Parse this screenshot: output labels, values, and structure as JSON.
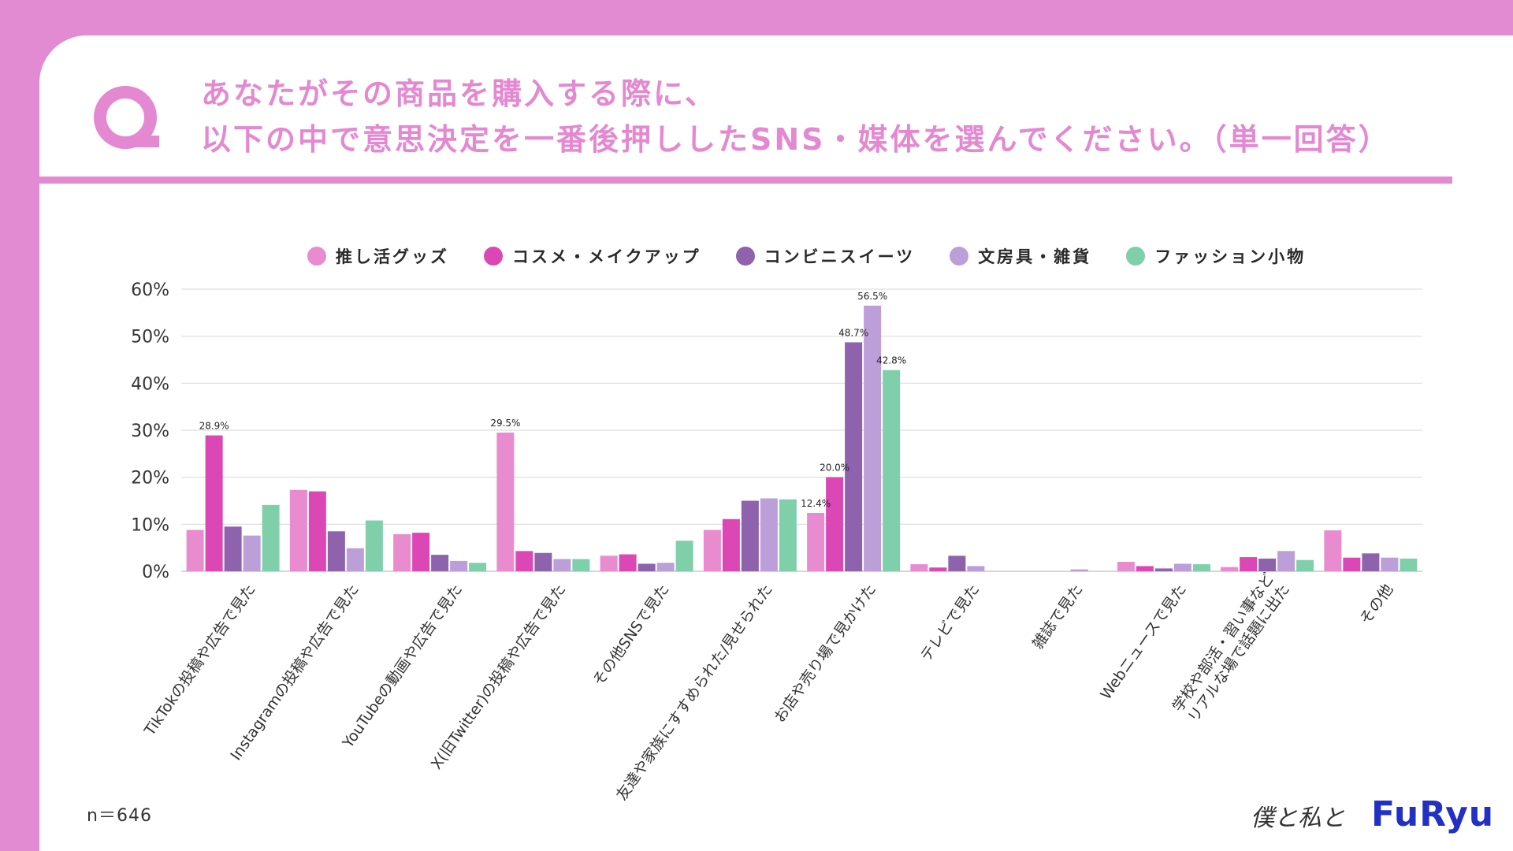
{
  "question": {
    "line1": "あなたがその商品を購入する際に、",
    "line2": "以下の中で意思決定を一番後押ししたSNS・媒体を選んでください。（単一回答）"
  },
  "legend": [
    {
      "label": "推し活グッズ",
      "color": "#e88ccf"
    },
    {
      "label": "コスメ・メイクアップ",
      "color": "#db47b5"
    },
    {
      "label": "コンビニスイーツ",
      "color": "#8e62ad"
    },
    {
      "label": "文房具・雑貨",
      "color": "#bc9ed8"
    },
    {
      "label": "ファッション小物",
      "color": "#7fd0aa"
    }
  ],
  "sample_size": "n＝646",
  "brand": {
    "signature": "僕と私と",
    "logo": "FuRyu"
  },
  "chart_data": {
    "type": "bar",
    "title": "あなたがその商品を購入する際に、以下の中で意思決定を一番後押ししたSNS・媒体を選んでください。（単一回答）",
    "xlabel": "",
    "ylabel": "",
    "ylim": [
      0,
      60
    ],
    "yticks": [
      "0%",
      "10%",
      "20%",
      "30%",
      "40%",
      "50%",
      "60%"
    ],
    "categories": [
      "TikTokの投稿や広告で見た",
      "Instagramの投稿や広告で見た",
      "YouTubeの動画や広告で見た",
      "X(旧Twitter)の投稿や広告で見た",
      "その他SNSで見た",
      "友達や家族にすすめられた/見せられた",
      "お店や売り場で見かけた",
      "テレビで見た",
      "雑誌で見た",
      "Webニュースで見た",
      "学校や部活・習い事など\nリアルな場で話題に出た",
      "その他"
    ],
    "series": [
      {
        "name": "推し活グッズ",
        "color": "#e88ccf",
        "values": [
          8.8,
          17.3,
          7.9,
          29.5,
          3.3,
          8.8,
          12.4,
          1.5,
          0,
          2.0,
          0.9,
          8.7
        ]
      },
      {
        "name": "コスメ・メイクアップ",
        "color": "#db47b5",
        "values": [
          28.9,
          17.0,
          8.2,
          4.3,
          3.6,
          11.1,
          20.0,
          0.8,
          0,
          1.1,
          3.0,
          2.9
        ]
      },
      {
        "name": "コンビニスイーツ",
        "color": "#8e62ad",
        "values": [
          9.5,
          8.5,
          3.5,
          3.9,
          1.6,
          15.0,
          48.7,
          3.3,
          0,
          0.6,
          2.7,
          3.8
        ]
      },
      {
        "name": "文房具・雑貨",
        "color": "#bc9ed8",
        "values": [
          7.6,
          4.9,
          2.2,
          2.6,
          1.8,
          15.5,
          56.5,
          1.1,
          0.4,
          1.6,
          4.3,
          2.9
        ]
      },
      {
        "name": "ファッション小物",
        "color": "#7fd0aa",
        "values": [
          14.1,
          10.8,
          1.8,
          2.6,
          6.5,
          15.3,
          42.8,
          0,
          0,
          1.5,
          2.4,
          2.7
        ]
      }
    ],
    "data_labels": [
      {
        "category": 0,
        "series": 1,
        "text": "28.9%"
      },
      {
        "category": 3,
        "series": 0,
        "text": "29.5%"
      },
      {
        "category": 6,
        "series": 0,
        "text": "12.4%"
      },
      {
        "category": 6,
        "series": 1,
        "text": "20.0%"
      },
      {
        "category": 6,
        "series": 2,
        "text": "48.7%"
      },
      {
        "category": 6,
        "series": 3,
        "text": "56.5%"
      },
      {
        "category": 6,
        "series": 4,
        "text": "42.8%"
      }
    ],
    "grid": true,
    "legend_position": "top"
  }
}
